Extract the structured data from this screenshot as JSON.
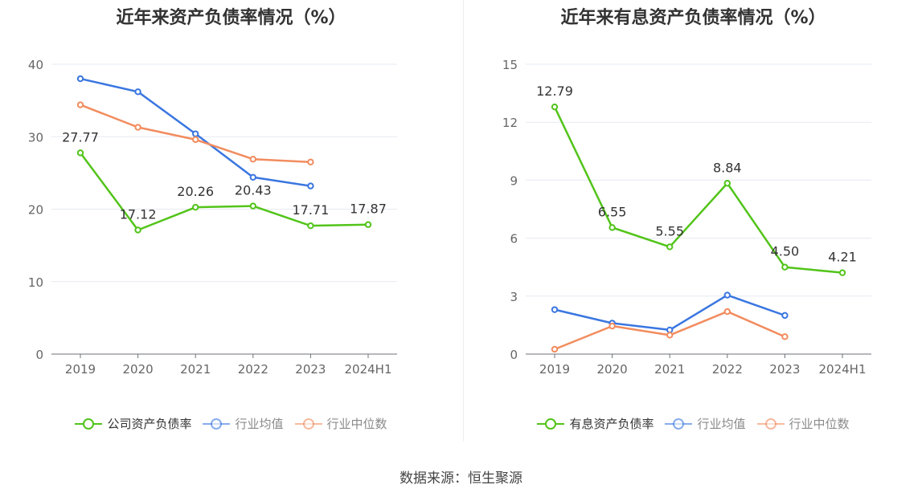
{
  "source_text": "数据来源：恒生聚源",
  "chart_data": [
    {
      "type": "line",
      "title": "近年来资产负债率情况（%）",
      "categories": [
        "2019",
        "2020",
        "2021",
        "2022",
        "2023",
        "2024H1"
      ],
      "ylim": [
        0,
        40
      ],
      "yticks": [
        0,
        10,
        20,
        30,
        40
      ],
      "grid": true,
      "legend_position": "bottom",
      "series": [
        {
          "name": "公司资产负债率",
          "color": "#52c41a",
          "labeled": true,
          "values": [
            27.77,
            17.12,
            20.26,
            20.43,
            17.71,
            17.87
          ],
          "labels": [
            "27.77",
            "17.12",
            "20.26",
            "20.43",
            "17.71",
            "17.87"
          ]
        },
        {
          "name": "行业均值",
          "color": "#3a76e0",
          "labeled": false,
          "values": [
            38.0,
            36.2,
            30.4,
            24.4,
            23.2,
            null
          ]
        },
        {
          "name": "行业中位数",
          "color": "#f28c5e",
          "labeled": false,
          "values": [
            34.4,
            31.3,
            29.6,
            26.9,
            26.5,
            null
          ]
        }
      ],
      "legend": [
        "公司资产负债率",
        "行业均值",
        "行业中位数"
      ]
    },
    {
      "type": "line",
      "title": "近年来有息资产负债率情况（%）",
      "categories": [
        "2019",
        "2020",
        "2021",
        "2022",
        "2023",
        "2024H1"
      ],
      "ylim": [
        0,
        15
      ],
      "yticks": [
        0,
        3,
        6,
        9,
        12,
        15
      ],
      "grid": true,
      "legend_position": "bottom",
      "series": [
        {
          "name": "有息资产负债率",
          "color": "#52c41a",
          "labeled": true,
          "values": [
            12.79,
            6.55,
            5.55,
            8.84,
            4.5,
            4.21
          ],
          "labels": [
            "12.79",
            "6.55",
            "5.55",
            "8.84",
            "4.50",
            "4.21"
          ]
        },
        {
          "name": "行业均值",
          "color": "#3a76e0",
          "labeled": false,
          "values": [
            2.3,
            1.6,
            1.25,
            3.05,
            2.0,
            null
          ]
        },
        {
          "name": "行业中位数",
          "color": "#f28c5e",
          "labeled": false,
          "values": [
            0.25,
            1.45,
            0.98,
            2.2,
            0.9,
            null
          ]
        }
      ],
      "legend": [
        "有息资产负债率",
        "行业均值",
        "行业中位数"
      ]
    }
  ]
}
